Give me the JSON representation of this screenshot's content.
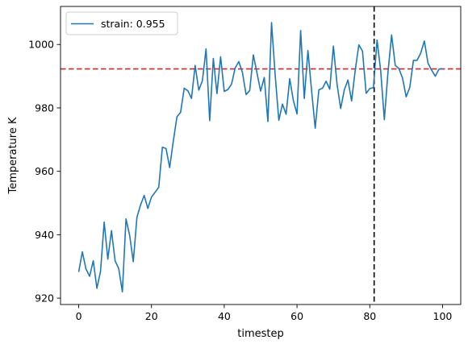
{
  "chart_data": {
    "type": "line",
    "title": "",
    "xlabel": "timestep",
    "ylabel": "Temperature K",
    "xlim": [
      -5,
      105
    ],
    "ylim": [
      918,
      1012
    ],
    "xticks": [
      0,
      20,
      40,
      60,
      80,
      100
    ],
    "yticks": [
      920,
      940,
      960,
      980,
      1000
    ],
    "grid": false,
    "legend": {
      "position": "top-left",
      "entries": [
        "strain: 0.955"
      ]
    },
    "series": [
      {
        "name": "strain: 0.955",
        "color": "#1f77b4",
        "x": [
          0,
          1,
          2,
          3,
          4,
          5,
          6,
          7,
          8,
          9,
          10,
          11,
          12,
          13,
          14,
          15,
          16,
          17,
          18,
          19,
          20,
          21,
          22,
          23,
          24,
          25,
          26,
          27,
          28,
          29,
          30,
          31,
          32,
          33,
          34,
          35,
          36,
          37,
          38,
          39,
          40,
          41,
          42,
          43,
          44,
          45,
          46,
          47,
          48,
          49,
          50,
          51,
          52,
          53,
          54,
          55,
          56,
          57,
          58,
          59,
          60,
          61,
          62,
          63,
          64,
          65,
          66,
          67,
          68,
          69,
          70,
          71,
          72,
          73,
          74,
          75,
          76,
          77,
          78,
          79,
          80,
          81,
          82,
          83,
          84,
          85,
          86,
          87,
          88,
          89,
          90,
          91,
          92,
          93,
          94,
          95,
          96,
          97,
          98,
          99,
          100
        ],
        "values": [
          928.3,
          934.6,
          929.2,
          926.9,
          931.8,
          923.1,
          928.5,
          944,
          932.3,
          941.3,
          931.8,
          929.3,
          922,
          945,
          939.8,
          931.5,
          945.5,
          949.4,
          952.4,
          948.3,
          951.9,
          953.4,
          955,
          967.6,
          967.2,
          961.2,
          969.5,
          977.2,
          978.6,
          986.2,
          985.4,
          983,
          993.4,
          985.6,
          988.6,
          998.6,
          976,
          995.6,
          984.5,
          996.1,
          985.2,
          985.8,
          987.5,
          992.6,
          994.6,
          991.2,
          984.2,
          985.5,
          996.7,
          991,
          985.3,
          989.6,
          975.7,
          1006.9,
          990.3,
          976.1,
          981.2,
          978,
          989.2,
          982.3,
          978.1,
          1004.4,
          983,
          998.1,
          985.5,
          973.6,
          985.7,
          986.2,
          988.4,
          985.9,
          999.5,
          987.5,
          979.8,
          985.7,
          988.8,
          982.2,
          991.9,
          999.9,
          997.9,
          984.6,
          986.1,
          986.4,
          1001.4,
          991.7,
          976.3,
          991.2,
          1003,
          993.4,
          992.4,
          989.4,
          983.5,
          986.5,
          995,
          995,
          997.3,
          1001.1,
          994.1,
          991.9,
          990,
          992.2,
          992.4
        ]
      }
    ],
    "reference_lines": [
      {
        "orientation": "horizontal",
        "value": 992.3,
        "color": "#d62728",
        "style": "dashed"
      },
      {
        "orientation": "vertical",
        "value": 81.2,
        "color": "#000000",
        "style": "dashed"
      }
    ]
  }
}
